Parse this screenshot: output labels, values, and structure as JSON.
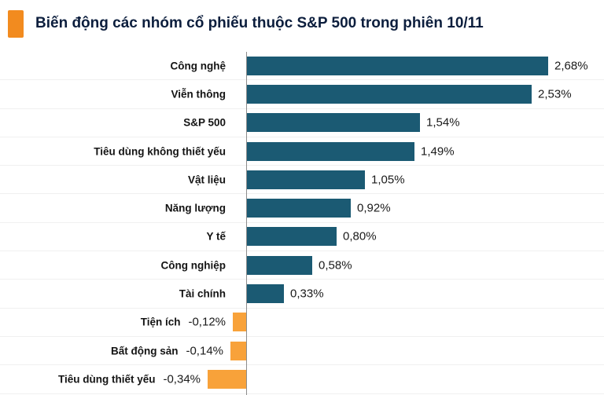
{
  "header": {
    "title": "Biến động các nhóm cổ phiếu thuộc S&P 500 trong phiên 10/11",
    "accent_color": "#f28b1f"
  },
  "chart_data": {
    "type": "bar",
    "orientation": "horizontal",
    "title": "Biến động các nhóm cổ phiếu thuộc S&P 500 trong phiên 10/11",
    "unit": "%",
    "categories": [
      "Công nghệ",
      "Viễn thông",
      "S&P 500",
      "Tiêu dùng không thiết yếu",
      "Vật liệu",
      "Năng lượng",
      "Y tế",
      "Công nghiệp",
      "Tài chính",
      "Tiện ích",
      "Bất động sản",
      "Tiêu dùng thiết yếu"
    ],
    "values": [
      2.68,
      2.53,
      1.54,
      1.49,
      1.05,
      0.92,
      0.8,
      0.58,
      0.33,
      -0.12,
      -0.14,
      -0.34
    ],
    "value_labels": [
      "2,68%",
      "2,53%",
      "1,54%",
      "1,49%",
      "1,05%",
      "0,92%",
      "0,80%",
      "0,58%",
      "0,33%",
      "-0,12%",
      "-0,14%",
      "-0,34%"
    ],
    "positive_color": "#1b5a73",
    "negative_color": "#f8a23a",
    "xlim": [
      -0.5,
      3.0
    ],
    "grid": "horizontal-light",
    "legend": "none"
  }
}
